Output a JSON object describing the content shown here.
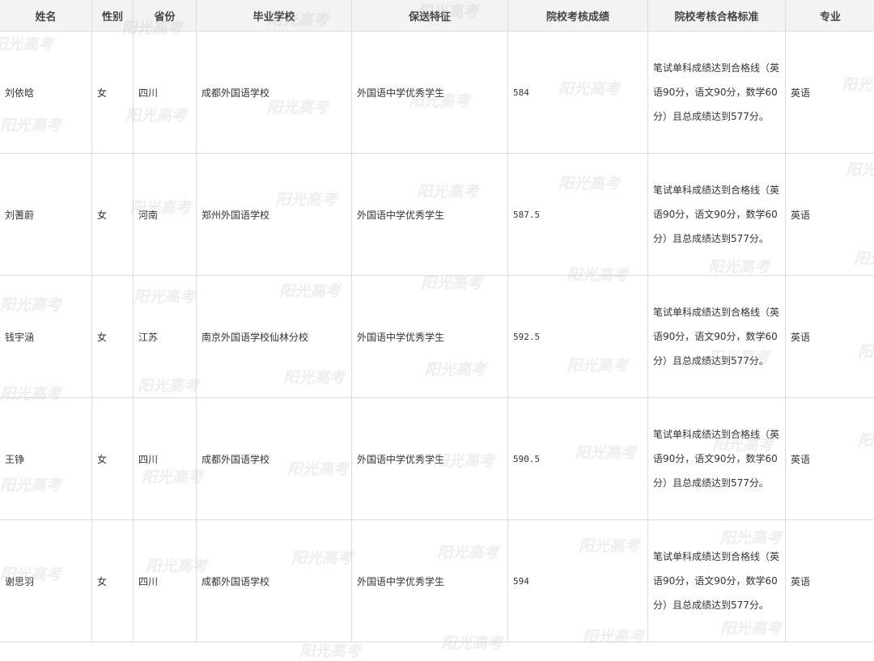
{
  "headers": [
    "姓名",
    "性别",
    "省份",
    "毕业学校",
    "保送特征",
    "院校考核成绩",
    "院校考核合格标准",
    "专业"
  ],
  "rows": [
    {
      "name": "刘依晗",
      "gender": "女",
      "province": "四川",
      "school": "成都外国语学校",
      "feature": "外国语中学优秀学生",
      "score": "584",
      "criteria": "笔试单科成绩达到合格线（英语90分，语文90分，数学60分）且总成绩达到577分。",
      "major": "英语"
    },
    {
      "name": "刘蓍蔚",
      "gender": "女",
      "province": "河南",
      "school": "郑州外国语学校",
      "feature": "外国语中学优秀学生",
      "score": "587.5",
      "criteria": "笔试单科成绩达到合格线（英语90分，语文90分，数学60分）且总成绩达到577分。",
      "major": "英语"
    },
    {
      "name": "钱宇涵",
      "gender": "女",
      "province": "江苏",
      "school": "南京外国语学校仙林分校",
      "feature": "外国语中学优秀学生",
      "score": "592.5",
      "criteria": "笔试单科成绩达到合格线（英语90分，语文90分，数学60分）且总成绩达到577分。",
      "major": "英语"
    },
    {
      "name": "王铮",
      "gender": "女",
      "province": "四川",
      "school": "成都外国语学校",
      "feature": "外国语中学优秀学生",
      "score": "590.5",
      "criteria": "笔试单科成绩达到合格线（英语90分，语文90分，数学60分）且总成绩达到577分。",
      "major": "英语"
    },
    {
      "name": "谢思羽",
      "gender": "女",
      "province": "四川",
      "school": "成都外国语学校",
      "feature": "外国语中学优秀学生",
      "score": "594",
      "criteria": "笔试单科成绩达到合格线（英语90分，语文90分，数学60分）且总成绩达到577分。",
      "major": "英语"
    }
  ],
  "watermark": "阳光高考"
}
